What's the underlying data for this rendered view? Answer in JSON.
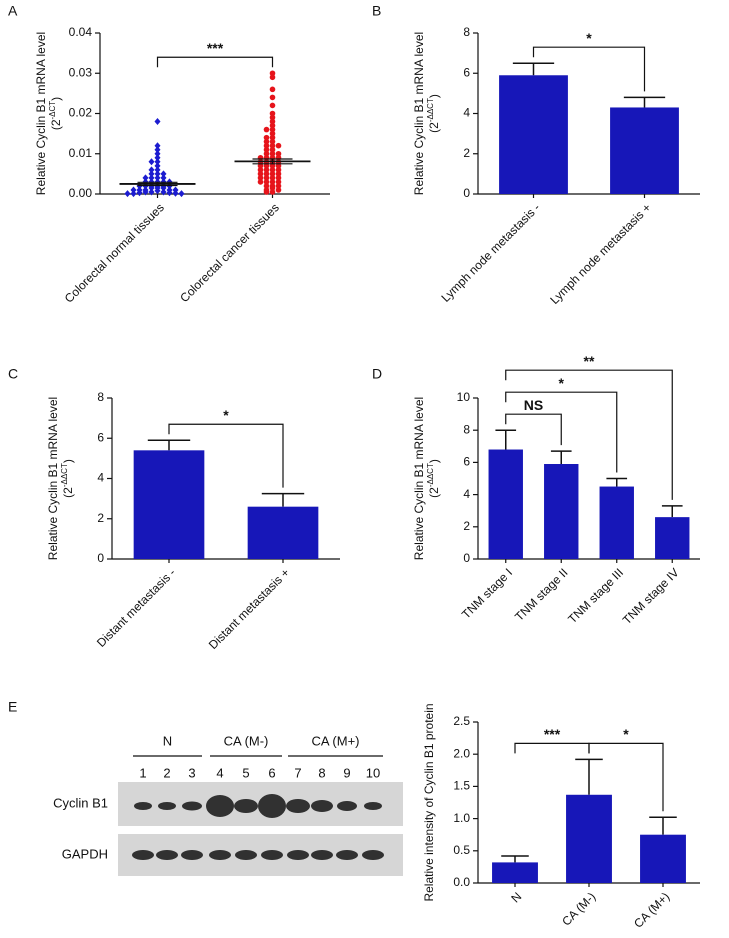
{
  "chart_data": [
    {
      "type": "strip",
      "panel": "A",
      "y_label": "Relative Cyclin B1 mRNA level",
      "y_unit": [
        "(2",
        "-ΔCT",
        ")"
      ],
      "categories": [
        "Colorectal normal tissues",
        "Colorectal cancer tissues"
      ],
      "colors": [
        "#1c1cd0",
        "#e6141b"
      ],
      "markers": [
        "diamond",
        "circle"
      ],
      "points": [
        [
          0.018,
          0.012,
          0.011,
          0.01,
          0.009,
          0.008,
          0.008,
          0.007,
          0.006,
          0.006,
          0.005,
          0.005,
          0.005,
          0.004,
          0.004,
          0.004,
          0.004,
          0.003,
          0.003,
          0.003,
          0.003,
          0.003,
          0.002,
          0.002,
          0.002,
          0.002,
          0.002,
          0.002,
          0.0015,
          0.0015,
          0.0015,
          0.001,
          0.001,
          0.001,
          0.001,
          0.001,
          0.0008,
          0.0005,
          0.0005,
          0.0005,
          0.0003,
          0.0003,
          0.0002,
          0.0001,
          0.0001,
          0.0001
        ],
        [
          0.03,
          0.029,
          0.026,
          0.024,
          0.022,
          0.02,
          0.019,
          0.018,
          0.017,
          0.016,
          0.016,
          0.015,
          0.014,
          0.014,
          0.013,
          0.013,
          0.012,
          0.012,
          0.012,
          0.011,
          0.011,
          0.01,
          0.01,
          0.01,
          0.009,
          0.009,
          0.009,
          0.009,
          0.008,
          0.008,
          0.008,
          0.008,
          0.007,
          0.007,
          0.007,
          0.007,
          0.006,
          0.006,
          0.006,
          0.006,
          0.005,
          0.005,
          0.005,
          0.005,
          0.004,
          0.004,
          0.004,
          0.004,
          0.003,
          0.003,
          0.003,
          0.003,
          0.002,
          0.002,
          0.002,
          0.0015,
          0.001,
          0.001,
          0.0005,
          0.0005
        ]
      ],
      "means": [
        0.0025,
        0.0081
      ],
      "sems": [
        0.0004,
        0.0006
      ],
      "ylim": [
        0,
        0.04
      ],
      "yticks": [
        {
          "value": 0,
          "label": "0.00"
        },
        {
          "value": 0.01,
          "label": "0.01"
        },
        {
          "value": 0.02,
          "label": "0.02"
        },
        {
          "value": 0.03,
          "label": "0.03"
        },
        {
          "value": 0.04,
          "label": "0.04"
        }
      ],
      "annotations": [
        {
          "between": [
            0,
            1
          ],
          "label": "***"
        }
      ]
    },
    {
      "type": "bar",
      "panel": "B",
      "y_label": "Relative Cyclin B1 mRNA level",
      "y_unit": [
        "(2",
        "-ΔΔCT",
        ")"
      ],
      "categories": [
        "Lymph node metastasis -",
        "Lymph node metastasis +"
      ],
      "color": "#1717b8",
      "values": [
        5.9,
        4.3
      ],
      "errors": [
        0.6,
        0.5
      ],
      "ylim": [
        0,
        8
      ],
      "yticks": [
        0,
        2,
        4,
        6,
        8
      ],
      "annotations": [
        {
          "between": [
            0,
            1
          ],
          "label": "*"
        }
      ]
    },
    {
      "type": "bar",
      "panel": "C",
      "y_label": "Relative Cyclin B1 mRNA level",
      "y_unit": [
        "(2",
        "-ΔΔCT",
        ")"
      ],
      "categories": [
        "Distant metastasis -",
        "Distant metastasis +"
      ],
      "color": "#1717b8",
      "values": [
        5.4,
        2.6
      ],
      "errors": [
        0.5,
        0.65
      ],
      "ylim": [
        0,
        8
      ],
      "yticks": [
        0,
        2,
        4,
        6,
        8
      ],
      "annotations": [
        {
          "between": [
            0,
            1
          ],
          "label": "*"
        }
      ]
    },
    {
      "type": "bar",
      "panel": "D",
      "y_label": "Relative Cyclin B1 mRNA level",
      "y_unit": [
        "(2",
        "-ΔΔCT",
        ")"
      ],
      "categories": [
        "TNM stage I",
        "TNM stage II",
        "TNM stage III",
        "TNM stage IV"
      ],
      "color": "#1717b8",
      "values": [
        6.8,
        5.9,
        4.5,
        2.6
      ],
      "errors": [
        1.2,
        0.8,
        0.5,
        0.7
      ],
      "ylim": [
        0,
        10
      ],
      "yticks": [
        0,
        2,
        4,
        6,
        8,
        10
      ],
      "annotations": [
        {
          "between": [
            0,
            1
          ],
          "label": "NS"
        },
        {
          "between": [
            0,
            2
          ],
          "label": "*"
        },
        {
          "between": [
            0,
            3
          ],
          "label": "**"
        }
      ]
    },
    {
      "type": "bar",
      "y_label": "Relative intensity of Cyclin B1 protein",
      "categories": [
        "N",
        "CA (M-)",
        "CA (M+)"
      ],
      "color": "#1717b8",
      "values": [
        0.32,
        1.37,
        0.75
      ],
      "errors": [
        0.1,
        0.55,
        0.27
      ],
      "ylim": [
        0,
        2.5
      ],
      "yticks": [
        {
          "value": 0,
          "label": "0.0"
        },
        {
          "value": 0.5,
          "label": "0.5"
        },
        {
          "value": 1,
          "label": "1.0"
        },
        {
          "value": 1.5,
          "label": "1.5"
        },
        {
          "value": 2,
          "label": "2.0"
        },
        {
          "value": 2.5,
          "label": "2.5"
        }
      ],
      "annotations": [
        {
          "between": [
            0,
            1
          ],
          "label": "***"
        },
        {
          "between": [
            1,
            2
          ],
          "label": "*"
        }
      ]
    }
  ],
  "blot": {
    "panel": "E",
    "groups": [
      "N",
      "CA (M-)",
      "CA (M+)"
    ],
    "lanes": [
      "1",
      "2",
      "3",
      "4",
      "5",
      "6",
      "7",
      "8",
      "9",
      "10"
    ],
    "rows": [
      "Cyclin B1",
      "GAPDH"
    ]
  }
}
